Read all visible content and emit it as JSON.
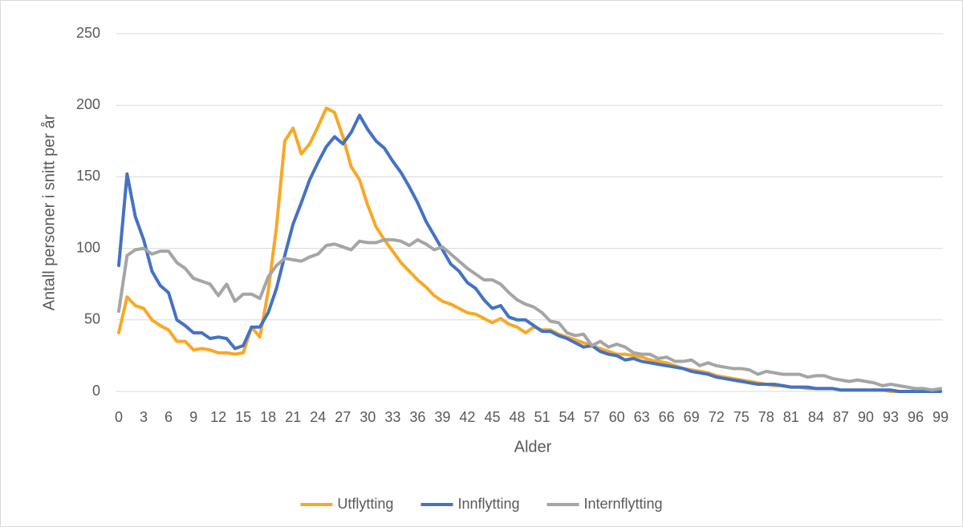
{
  "chart_data": {
    "type": "line",
    "x": [
      0,
      1,
      2,
      3,
      4,
      5,
      6,
      7,
      8,
      9,
      10,
      11,
      12,
      13,
      14,
      15,
      16,
      17,
      18,
      19,
      20,
      21,
      22,
      23,
      24,
      25,
      26,
      27,
      28,
      29,
      30,
      31,
      32,
      33,
      34,
      35,
      36,
      37,
      38,
      39,
      40,
      41,
      42,
      43,
      44,
      45,
      46,
      47,
      48,
      49,
      50,
      51,
      52,
      53,
      54,
      55,
      56,
      57,
      58,
      59,
      60,
      61,
      62,
      63,
      64,
      65,
      66,
      67,
      68,
      69,
      70,
      71,
      72,
      73,
      74,
      75,
      76,
      77,
      78,
      79,
      80,
      81,
      82,
      83,
      84,
      85,
      86,
      87,
      88,
      89,
      90,
      91,
      92,
      93,
      94,
      95,
      96,
      97,
      98,
      99
    ],
    "xlim": [
      0,
      99
    ],
    "xticks": [
      0,
      3,
      6,
      9,
      12,
      15,
      18,
      21,
      24,
      27,
      30,
      33,
      36,
      39,
      42,
      45,
      48,
      51,
      54,
      57,
      60,
      63,
      66,
      69,
      72,
      75,
      78,
      81,
      84,
      87,
      90,
      93,
      96,
      99
    ],
    "ylim": [
      0,
      250
    ],
    "yticks": [
      0,
      50,
      100,
      150,
      200,
      250
    ],
    "grid": true,
    "xlabel": "Alder",
    "ylabel": "Antall personer i snitt per år",
    "legend": "bottom",
    "series": [
      {
        "name": "Utflytting",
        "color": "#f9a825",
        "values": [
          41,
          66,
          60,
          58,
          50,
          46,
          43,
          35,
          35,
          29,
          30,
          29,
          27,
          27,
          26,
          27,
          45,
          38,
          70,
          115,
          175,
          184,
          166,
          173,
          185,
          198,
          195,
          178,
          157,
          148,
          130,
          115,
          106,
          98,
          90,
          84,
          78,
          73,
          67,
          63,
          61,
          58,
          55,
          54,
          51,
          48,
          51,
          47,
          45,
          41,
          45,
          43,
          43,
          40,
          38,
          36,
          34,
          32,
          30,
          28,
          26,
          26,
          25,
          24,
          22,
          21,
          20,
          18,
          16,
          15,
          14,
          13,
          11,
          10,
          9,
          8,
          7,
          6,
          5,
          4,
          4,
          3,
          3,
          2,
          2,
          2,
          2,
          1,
          1,
          1,
          1,
          1,
          1,
          0,
          0,
          0,
          0,
          0,
          0,
          0
        ]
      },
      {
        "name": "Innflytting",
        "color": "#4472c4",
        "values": [
          88,
          152,
          122,
          106,
          84,
          74,
          69,
          50,
          46,
          41,
          41,
          37,
          38,
          37,
          30,
          32,
          45,
          45,
          55,
          72,
          95,
          117,
          132,
          148,
          160,
          171,
          178,
          173,
          181,
          193,
          183,
          175,
          170,
          161,
          153,
          143,
          132,
          119,
          109,
          99,
          89,
          84,
          76,
          72,
          64,
          58,
          60,
          52,
          50,
          50,
          46,
          42,
          42,
          39,
          37,
          34,
          31,
          32,
          28,
          26,
          25,
          22,
          23,
          21,
          20,
          19,
          18,
          17,
          16,
          14,
          13,
          12,
          10,
          9,
          8,
          7,
          6,
          5,
          5,
          5,
          4,
          3,
          3,
          3,
          2,
          2,
          2,
          1,
          1,
          1,
          1,
          1,
          1,
          1,
          0,
          0,
          0,
          0,
          0,
          0
        ]
      },
      {
        "name": "Internflytting",
        "color": "#a5a5a5",
        "values": [
          56,
          95,
          99,
          100,
          96,
          98,
          98,
          90,
          86,
          79,
          77,
          75,
          67,
          75,
          63,
          68,
          68,
          65,
          80,
          88,
          93,
          92,
          91,
          94,
          96,
          102,
          103,
          101,
          99,
          105,
          104,
          104,
          106,
          106,
          105,
          102,
          106,
          103,
          99,
          101,
          96,
          91,
          86,
          82,
          78,
          78,
          75,
          69,
          64,
          61,
          59,
          55,
          49,
          48,
          41,
          39,
          40,
          32,
          35,
          31,
          33,
          31,
          27,
          26,
          26,
          23,
          24,
          21,
          21,
          22,
          18,
          20,
          18,
          17,
          16,
          16,
          15,
          12,
          14,
          13,
          12,
          12,
          12,
          10,
          11,
          11,
          9,
          8,
          7,
          8,
          7,
          6,
          4,
          5,
          4,
          3,
          2,
          2,
          1,
          2
        ]
      }
    ]
  }
}
